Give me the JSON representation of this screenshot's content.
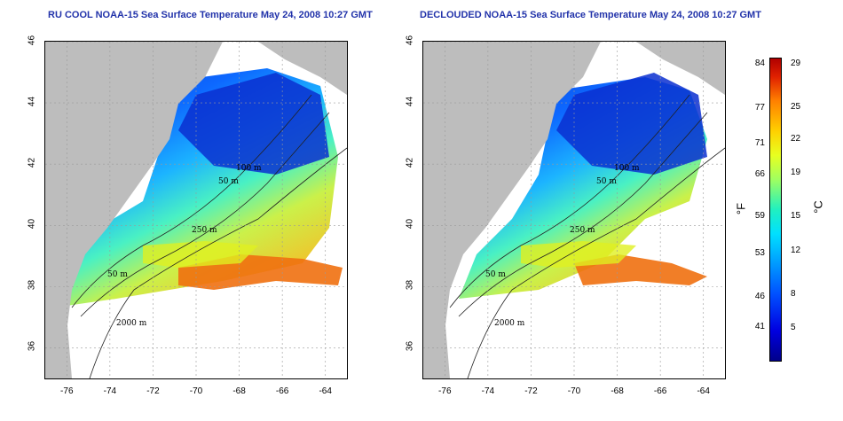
{
  "maps": [
    {
      "title": "RU COOL NOAA-15 Sea Surface Temperature May 24, 2008 10:27 GMT",
      "clouds_removed": false
    },
    {
      "title": "DECLOUDED NOAA-15 Sea Surface Temperature May 24, 2008 10:27 GMT",
      "clouds_removed": true
    }
  ],
  "axes": {
    "lat_ticks": [
      "46",
      "44",
      "42",
      "40",
      "38",
      "36"
    ],
    "lon_ticks": [
      "-76",
      "-74",
      "-72",
      "-70",
      "-68",
      "-66",
      "-64"
    ],
    "lat_range": [
      35,
      46
    ],
    "lon_range": [
      -77,
      -63
    ]
  },
  "contour_labels": [
    "100 m",
    "50 m",
    "250 m",
    "50 m",
    "2000 m"
  ],
  "colorbar": {
    "f_ticks": [
      "84",
      "77",
      "71",
      "66",
      "59",
      "53",
      "46",
      "41"
    ],
    "c_ticks": [
      "29",
      "25",
      "22",
      "19",
      "15",
      "12",
      "8",
      "5"
    ],
    "f_unit": "°F",
    "c_unit": "°C"
  },
  "colors": {
    "land": "#bdbdbd",
    "title": "#2233aa",
    "grid": "#9a9a9a"
  }
}
